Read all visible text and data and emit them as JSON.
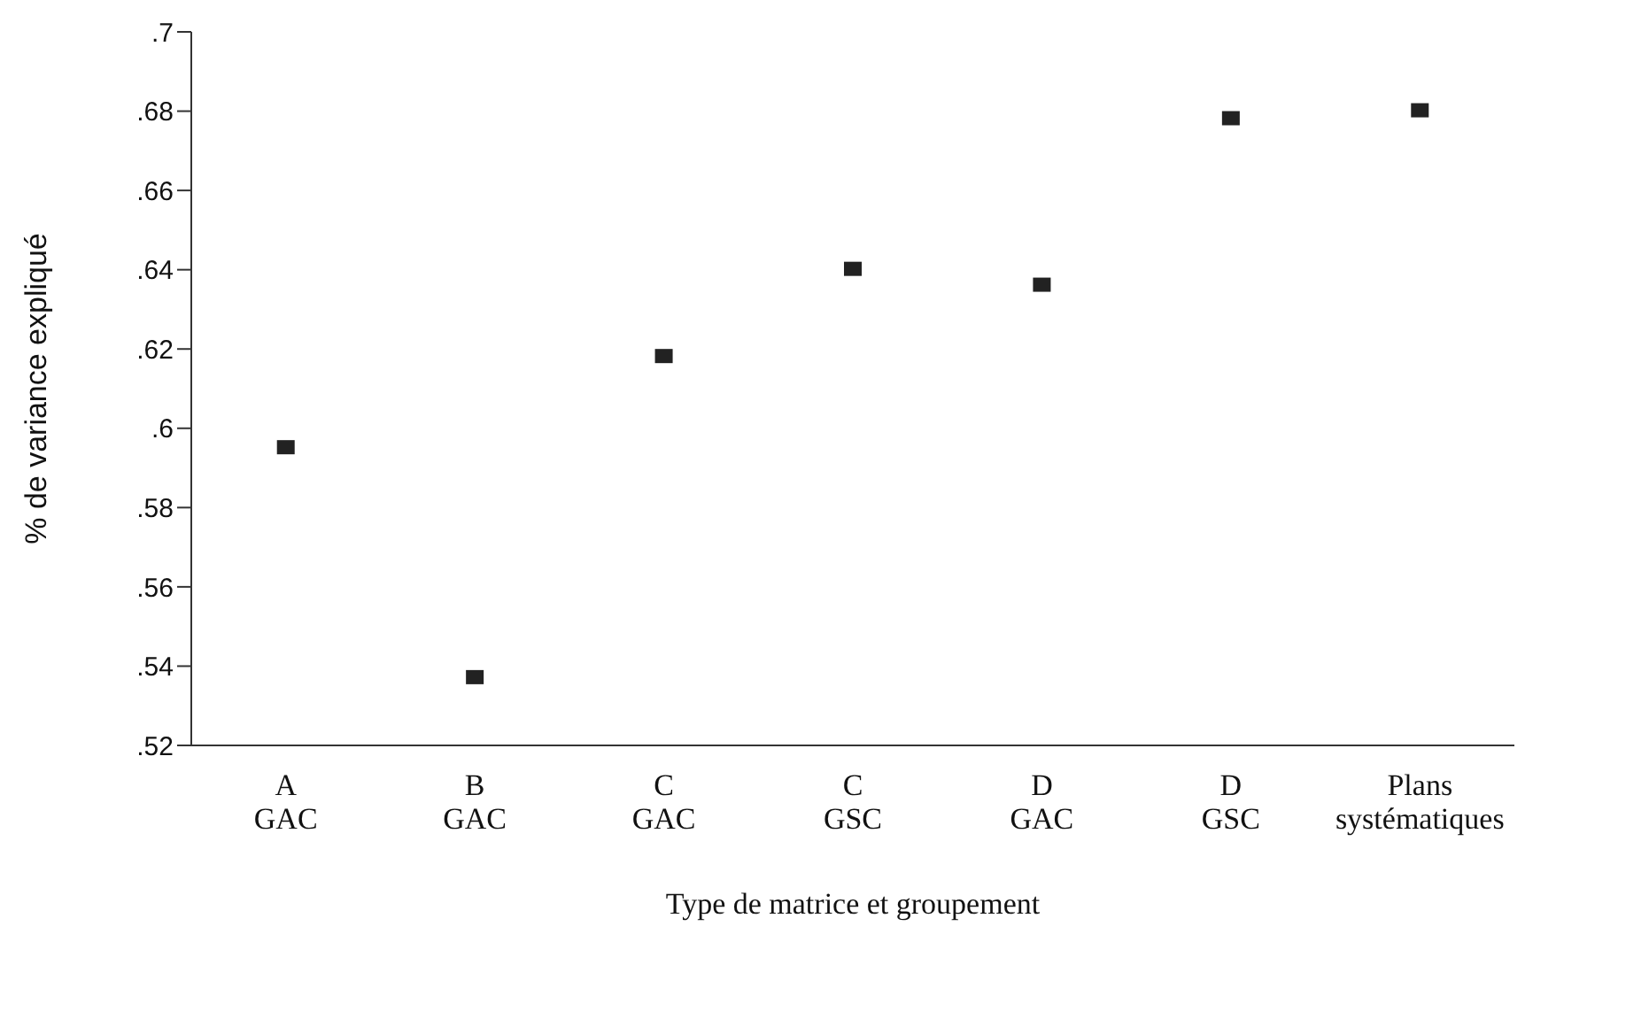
{
  "chart_data": {
    "type": "scatter",
    "xlabel": "Type de matrice et groupement",
    "ylabel": "% de variance expliqué",
    "categories": [
      "A\nGAC",
      "B\nGAC",
      "C\nGAC",
      "C\nGSC",
      "D\nGAC",
      "D\nGSC",
      "Plans\nsystématiques"
    ],
    "values": [
      0.595,
      0.537,
      0.618,
      0.64,
      0.636,
      0.678,
      0.68
    ],
    "color": "#222222",
    "marker": "square",
    "ylim": [
      0.52,
      0.7
    ],
    "yticks": [
      {
        "value": 0.52,
        "label": ".52"
      },
      {
        "value": 0.54,
        "label": ".54"
      },
      {
        "value": 0.56,
        "label": ".56"
      },
      {
        "value": 0.58,
        "label": ".58"
      },
      {
        "value": 0.6,
        "label": ".6"
      },
      {
        "value": 0.62,
        "label": ".62"
      },
      {
        "value": 0.64,
        "label": ".64"
      },
      {
        "value": 0.66,
        "label": ".66"
      },
      {
        "value": 0.68,
        "label": ".68"
      },
      {
        "value": 0.7,
        "label": ".7"
      }
    ]
  }
}
